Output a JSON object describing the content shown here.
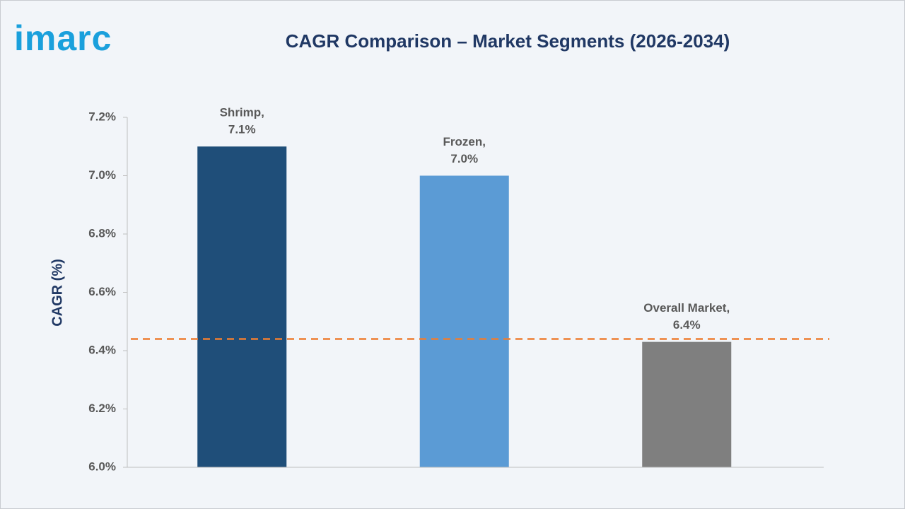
{
  "logo": "imarc",
  "chart_data": {
    "type": "bar",
    "title": "CAGR Comparison – Market Segments (2026-2034)",
    "y_label": "CAGR (%)",
    "categories": [
      "Shrimp,",
      "Frozen,",
      "Overall Market,"
    ],
    "values": [
      7.1,
      7.0,
      6.43
    ],
    "value_labels": [
      "7.1%",
      "7.0%",
      "6.4%"
    ],
    "colors": [
      "#1f4e79",
      "#5b9bd5",
      "#7f7f7f"
    ],
    "ylim": [
      6.0,
      7.2
    ],
    "yticks": [
      {
        "value": 6.0,
        "label": "6.0%"
      },
      {
        "value": 6.2,
        "label": "6.2%"
      },
      {
        "value": 6.4,
        "label": "6.4%"
      },
      {
        "value": 6.6,
        "label": "6.6%"
      },
      {
        "value": 6.8,
        "label": "6.8%"
      },
      {
        "value": 7.0,
        "label": "7.0%"
      },
      {
        "value": 7.2,
        "label": "7.2%"
      }
    ],
    "reference_line": {
      "value": 6.44,
      "color": "#ed7d31",
      "dashed": true
    },
    "grid": false
  }
}
